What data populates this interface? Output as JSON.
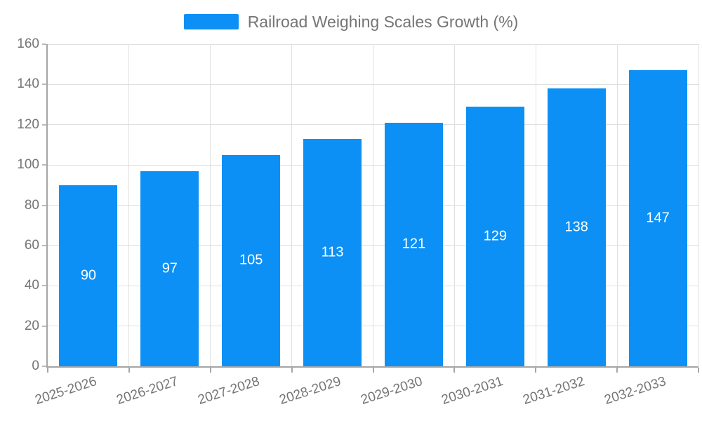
{
  "legend": {
    "label": "Railroad Weighing Scales Growth (%)"
  },
  "colors": {
    "bar": "#0C90F5",
    "grid": "#E0E0E0",
    "axis": "#A6A6A6",
    "tick": "#BBBBBB",
    "text": "#757575",
    "bar_label": "#FFFFFF",
    "background": "#FFFFFF"
  },
  "chart_data": {
    "type": "bar",
    "title": "Railroad Weighing Scales Growth (%)",
    "categories": [
      "2025-2026",
      "2026-2027",
      "2027-2028",
      "2028-2029",
      "2029-2030",
      "2030-2031",
      "2031-2032",
      "2032-2033"
    ],
    "values": [
      90,
      97,
      105,
      113,
      121,
      129,
      138,
      147
    ],
    "xlabel": "",
    "ylabel": "",
    "ylim": [
      0,
      160
    ],
    "yticks": [
      0,
      20,
      40,
      60,
      80,
      100,
      120,
      140,
      160
    ],
    "grid": true,
    "legend_position": "top-center",
    "value_labels": "inside-center",
    "xtick_rotation_deg": -18
  }
}
